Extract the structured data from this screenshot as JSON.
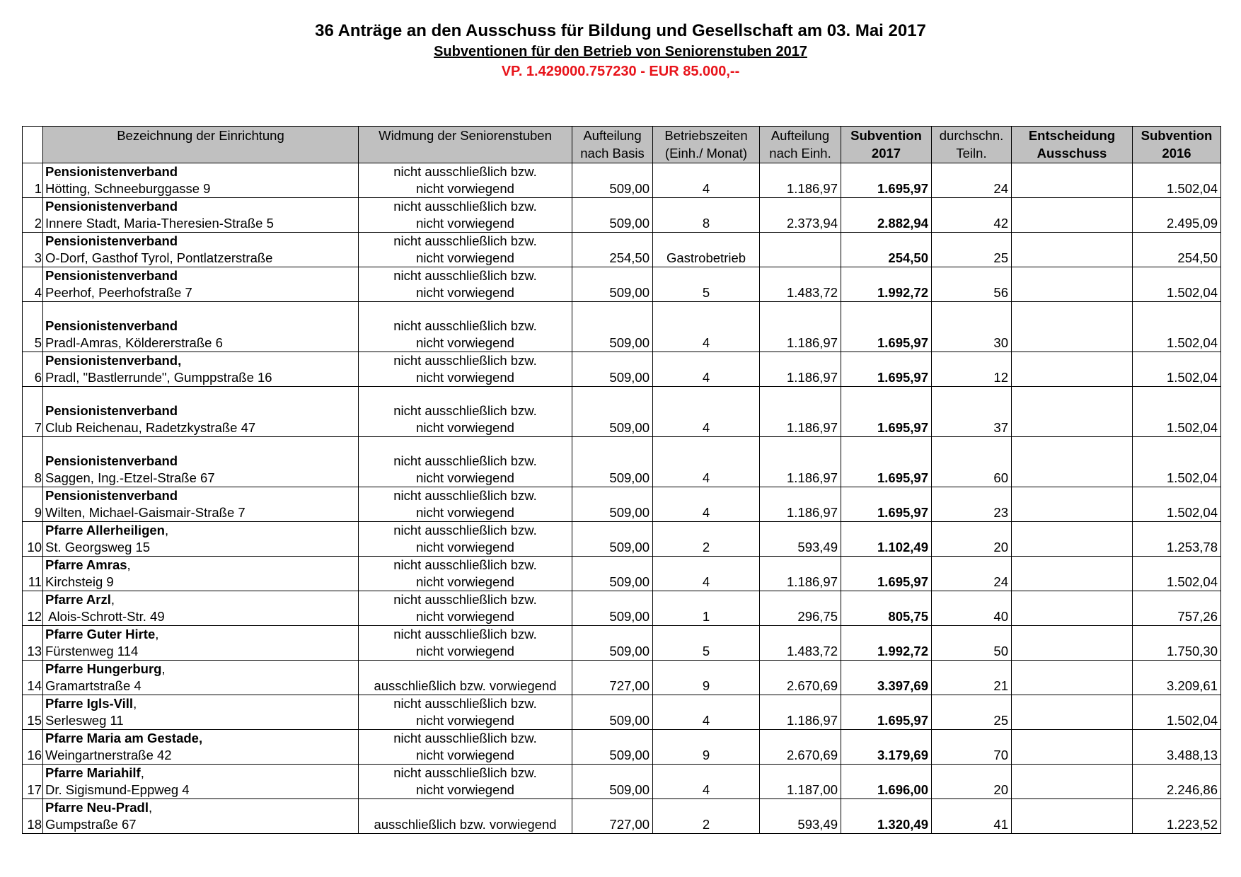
{
  "header": {
    "title": "36 Anträge an den Ausschuss für Bildung und Gesellschaft am  03. Mai 2017",
    "subtitle": "Subventionen für den Betrieb von Seniorenstuben 2017",
    "budget": "VP. 1.429000.757230 - EUR 85.000,--"
  },
  "columns": [
    {
      "l1": "",
      "l2": ""
    },
    {
      "l1": "Bezeichnung der Einrichtung",
      "l2": ""
    },
    {
      "l1": "Widmung der Seniorenstuben",
      "l2": ""
    },
    {
      "l1": "Aufteilung",
      "l2": "nach Basis"
    },
    {
      "l1": "Betriebszeiten",
      "l2": "(Einh./ Monat)"
    },
    {
      "l1": "Aufteilung",
      "l2": "nach Einh."
    },
    {
      "l1": "Subvention",
      "l2": "2017"
    },
    {
      "l1": "durchschn.",
      "l2": "Teiln."
    },
    {
      "l1": "Entscheidung",
      "l2": "Ausschuss"
    },
    {
      "l1": "Subvention",
      "l2": "2016"
    }
  ],
  "rows": [
    {
      "nr": "1",
      "name": "Pensionistenverband",
      "name_suffix": "",
      "address": "Hötting, Schneeburggasse 9",
      "w1": "nicht ausschließlich bzw.",
      "w2": "nicht vorwiegend",
      "basis": "509,00",
      "zeiten": "4",
      "einh": "1.186,97",
      "sub2017": "1.695,97",
      "teiln": "24",
      "entscheidung": "",
      "sub2016": "1.502,04"
    },
    {
      "nr": "2",
      "name": "Pensionistenverband",
      "name_suffix": "",
      "address": "Innere Stadt, Maria-Theresien-Straße 5",
      "w1": "nicht ausschließlich bzw.",
      "w2": "nicht vorwiegend",
      "basis": "509,00",
      "zeiten": "8",
      "einh": "2.373,94",
      "sub2017": "2.882,94",
      "teiln": "42",
      "entscheidung": "",
      "sub2016": "2.495,09"
    },
    {
      "nr": "3",
      "name": "Pensionistenverband",
      "name_suffix": "",
      "address": "O-Dorf, Gasthof Tyrol, Pontlatzerstraße",
      "w1": "nicht ausschließlich bzw.",
      "w2": "nicht vorwiegend",
      "basis": "254,50",
      "zeiten": "Gastrobetrieb",
      "einh": "",
      "sub2017": "254,50",
      "teiln": "25",
      "entscheidung": "",
      "sub2016": "254,50"
    },
    {
      "nr": "4",
      "name": "Pensionistenverband",
      "name_suffix": "",
      "address": "Peerhof, Peerhofstraße 7",
      "w1": "nicht ausschließlich bzw.",
      "w2": "nicht vorwiegend",
      "basis": "509,00",
      "zeiten": "5",
      "einh": "1.483,72",
      "sub2017": "1.992,72",
      "teiln": "56",
      "entscheidung": "",
      "sub2016": "1.502,04"
    },
    {
      "nr": "5",
      "name": "Pensionistenverband",
      "name_suffix": "",
      "address": "Pradl-Amras, Köldererstraße 6",
      "w1": "nicht ausschließlich bzw.",
      "w2": "nicht vorwiegend",
      "basis": "509,00",
      "zeiten": "4",
      "einh": "1.186,97",
      "sub2017": "1.695,97",
      "teiln": "30",
      "entscheidung": "",
      "sub2016": "1.502,04"
    },
    {
      "nr": "6",
      "name": "Pensionistenverband,",
      "name_suffix": "",
      "address": "Pradl, \"Bastlerrunde\", Gumppstraße 16",
      "w1": "nicht ausschließlich bzw.",
      "w2": "nicht vorwiegend",
      "basis": "509,00",
      "zeiten": "4",
      "einh": "1.186,97",
      "sub2017": "1.695,97",
      "teiln": "12",
      "entscheidung": "",
      "sub2016": "1.502,04"
    },
    {
      "nr": "7",
      "name": "Pensionistenverband",
      "name_suffix": "",
      "address": "Club Reichenau, Radetzkystraße 47",
      "w1": "nicht ausschließlich bzw.",
      "w2": "nicht vorwiegend",
      "basis": "509,00",
      "zeiten": "4",
      "einh": "1.186,97",
      "sub2017": "1.695,97",
      "teiln": "37",
      "entscheidung": "",
      "sub2016": "1.502,04"
    },
    {
      "nr": "8",
      "name": "Pensionistenverband",
      "name_suffix": "",
      "address": "Saggen, Ing.-Etzel-Straße 67",
      "w1": "nicht ausschließlich bzw.",
      "w2": "nicht vorwiegend",
      "basis": "509,00",
      "zeiten": "4",
      "einh": "1.186,97",
      "sub2017": "1.695,97",
      "teiln": "60",
      "entscheidung": "",
      "sub2016": "1.502,04"
    },
    {
      "nr": "9",
      "name": "Pensionistenverband",
      "name_suffix": "",
      "address": "Wilten, Michael-Gaismair-Straße 7",
      "w1": "nicht ausschließlich bzw.",
      "w2": "nicht vorwiegend",
      "basis": "509,00",
      "zeiten": "4",
      "einh": "1.186,97",
      "sub2017": "1.695,97",
      "teiln": "23",
      "entscheidung": "",
      "sub2016": "1.502,04"
    },
    {
      "nr": "10",
      "name": "Pfarre Allerheiligen",
      "name_suffix": ",",
      "address": "St. Georgsweg 15",
      "w1": "nicht ausschließlich bzw.",
      "w2": "nicht vorwiegend",
      "basis": "509,00",
      "zeiten": "2",
      "einh": "593,49",
      "sub2017": "1.102,49",
      "teiln": "20",
      "entscheidung": "",
      "sub2016": "1.253,78"
    },
    {
      "nr": "11",
      "name": "Pfarre Amras",
      "name_suffix": ",",
      "address": "Kirchsteig 9",
      "w1": "nicht ausschließlich bzw.",
      "w2": "nicht vorwiegend",
      "basis": "509,00",
      "zeiten": "4",
      "einh": "1.186,97",
      "sub2017": "1.695,97",
      "teiln": "24",
      "entscheidung": "",
      "sub2016": "1.502,04"
    },
    {
      "nr": "12",
      "name": "Pfarre Arzl",
      "name_suffix": ",",
      "address": " Alois-Schrott-Str. 49",
      "w1": "nicht ausschließlich bzw.",
      "w2": "nicht vorwiegend",
      "basis": "509,00",
      "zeiten": "1",
      "einh": "296,75",
      "sub2017": "805,75",
      "teiln": "40",
      "entscheidung": "",
      "sub2016": "757,26"
    },
    {
      "nr": "13",
      "name": "Pfarre Guter Hirte",
      "name_suffix": ",",
      "address": "Fürstenweg 114",
      "w1": "nicht ausschließlich bzw.",
      "w2": "nicht vorwiegend",
      "basis": "509,00",
      "zeiten": "5",
      "einh": "1.483,72",
      "sub2017": "1.992,72",
      "teiln": "50",
      "entscheidung": "",
      "sub2016": "1.750,30"
    },
    {
      "nr": "14",
      "name": "Pfarre Hungerburg",
      "name_suffix": ",",
      "address": "Gramartstraße 4",
      "w1": "",
      "w2": "ausschließlich bzw. vorwiegend",
      "basis": "727,00",
      "zeiten": "9",
      "einh": "2.670,69",
      "sub2017": "3.397,69",
      "teiln": "21",
      "entscheidung": "",
      "sub2016": "3.209,61"
    },
    {
      "nr": "15",
      "name": "Pfarre Igls-Vill",
      "name_suffix": ",",
      "address": "Serlesweg 11",
      "w1": "nicht ausschließlich bzw.",
      "w2": "nicht vorwiegend",
      "basis": "509,00",
      "zeiten": "4",
      "einh": "1.186,97",
      "sub2017": "1.695,97",
      "teiln": "25",
      "entscheidung": "",
      "sub2016": "1.502,04"
    },
    {
      "nr": "16",
      "name": "Pfarre Maria am Gestade,",
      "name_suffix": "",
      "address": "Weingartnerstraße 42",
      "w1": "nicht ausschließlich bzw.",
      "w2": "nicht vorwiegend",
      "basis": "509,00",
      "zeiten": "9",
      "einh": "2.670,69",
      "sub2017": "3.179,69",
      "teiln": "70",
      "entscheidung": "",
      "sub2016": "3.488,13"
    },
    {
      "nr": "17",
      "name": "Pfarre Mariahilf",
      "name_suffix": ",",
      "address": "Dr. Sigismund-Eppweg 4",
      "w1": "nicht ausschließlich bzw.",
      "w2": "nicht vorwiegend",
      "basis": "509,00",
      "zeiten": "4",
      "einh": "1.187,00",
      "sub2017": "1.696,00",
      "teiln": "20",
      "entscheidung": "",
      "sub2016": "2.246,86"
    },
    {
      "nr": "18",
      "name": "Pfarre Neu-Pradl",
      "name_suffix": ",",
      "address": "Gumpstraße 67",
      "w1": "",
      "w2": "ausschließlich bzw. vorwiegend",
      "basis": "727,00",
      "zeiten": "2",
      "einh": "593,49",
      "sub2017": "1.320,49",
      "teiln": "41",
      "entscheidung": "",
      "sub2016": "1.223,52"
    }
  ]
}
